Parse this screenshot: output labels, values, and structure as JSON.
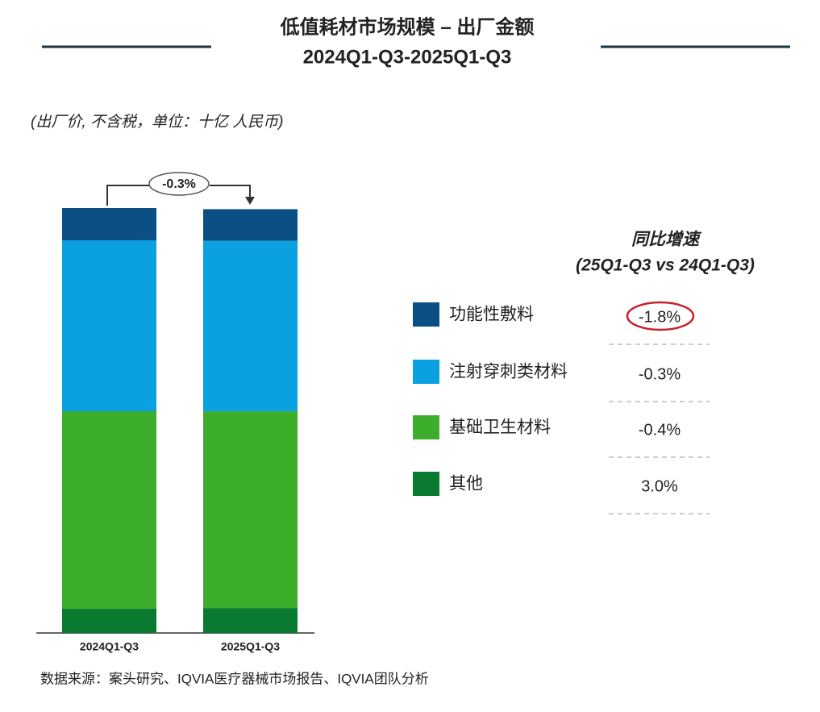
{
  "chart_data": {
    "type": "stacked_bar",
    "title": "低值耗材市场规模 – 出厂金额",
    "subtitle": "2024Q1-Q3-2025Q1-Q3",
    "unit_note": "(出厂价, 不含税，单位：十亿 人民币)",
    "categories": [
      "2024Q1-Q3",
      "2025Q1-Q3"
    ],
    "series": [
      {
        "name": "功能性敷料",
        "color": "#0b4f84",
        "values": [
          4.0,
          3.93
        ]
      },
      {
        "name": "注射穿刺类材料",
        "color": "#0ba0df",
        "values": [
          21.2,
          21.14
        ]
      },
      {
        "name": "基础卫生材料",
        "color": "#3dae2b",
        "values": [
          24.5,
          24.4
        ]
      },
      {
        "name": "其他",
        "color": "#0a7a30",
        "values": [
          3.0,
          3.09
        ]
      }
    ],
    "change_annotation": "-0.3%",
    "growth": {
      "title": "同比增速",
      "subtitle": "(25Q1-Q3 vs 24Q1-Q3)",
      "values": [
        -1.8,
        -0.3,
        -0.4,
        3.0
      ],
      "value_labels": [
        "-1.8%",
        "-0.3%",
        "-0.4%",
        "3.0%"
      ]
    },
    "source": "数据来源：案头研究、IQVIA医疗器械市场报告、IQVIA团队分析"
  }
}
